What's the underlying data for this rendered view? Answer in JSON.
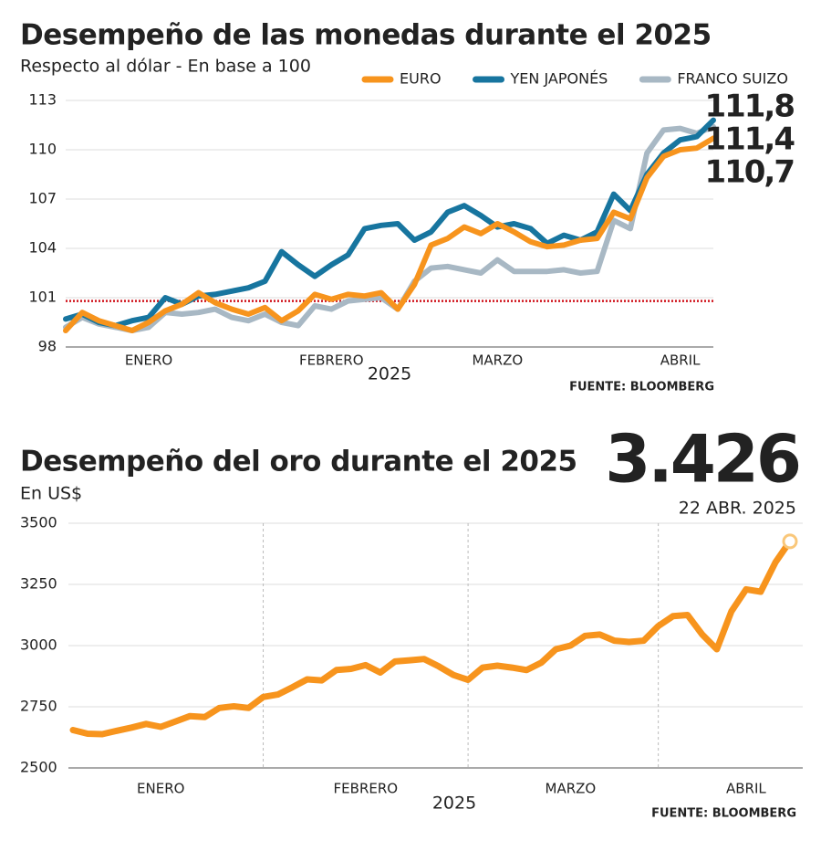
{
  "chart_data": [
    {
      "type": "line",
      "title": "Desempeño de las monedas durante el 2025",
      "subtitle": "Respecto al dólar - En base a 100",
      "x_label": "2025",
      "source": "FUENTE: BLOOMBERG",
      "categories": [
        null,
        null,
        null,
        null,
        null,
        "ENERO",
        null,
        null,
        null,
        null,
        null,
        null,
        null,
        null,
        null,
        null,
        "FEBRERO",
        null,
        null,
        null,
        null,
        null,
        null,
        null,
        null,
        null,
        "MARZO",
        null,
        null,
        null,
        null,
        null,
        null,
        null,
        null,
        null,
        null,
        "ABRIL",
        null,
        null
      ],
      "ylim": [
        98,
        113
      ],
      "yticks": [
        98,
        101,
        104,
        107,
        110,
        113
      ],
      "grid": true,
      "reference_line": {
        "value": 100.8,
        "color": "#d0121b"
      },
      "series": [
        {
          "name": "EURO",
          "color": "#f7941d",
          "values": [
            99.0,
            100.1,
            99.6,
            99.3,
            99.0,
            99.5,
            100.2,
            100.6,
            101.3,
            100.7,
            100.3,
            100.0,
            100.4,
            99.6,
            100.2,
            101.2,
            100.9,
            101.2,
            101.1,
            101.3,
            100.3,
            101.8,
            104.2,
            104.6,
            105.3,
            104.9,
            105.5,
            105.0,
            104.4,
            104.1,
            104.2,
            104.5,
            104.6,
            106.2,
            105.8,
            108.3,
            109.6,
            110.0,
            110.1,
            110.7
          ],
          "value_labels": [
            null,
            null,
            null,
            null,
            null,
            null,
            null,
            null,
            null,
            null,
            null,
            null,
            null,
            null,
            null,
            null,
            null,
            null,
            null,
            null,
            null,
            null,
            null,
            null,
            null,
            null,
            null,
            null,
            null,
            null,
            null,
            null,
            null,
            null,
            null,
            null,
            null,
            null,
            null,
            "110,7"
          ]
        },
        {
          "name": "YEN JAPONÉS",
          "color": "#17759f",
          "values": [
            99.7,
            100.0,
            99.5,
            99.3,
            99.6,
            99.8,
            101.0,
            100.6,
            101.1,
            101.2,
            101.4,
            101.6,
            102.0,
            103.8,
            103.0,
            102.3,
            103.0,
            103.6,
            105.2,
            105.4,
            105.5,
            104.5,
            105.0,
            106.2,
            106.6,
            106.0,
            105.3,
            105.5,
            105.2,
            104.3,
            104.8,
            104.5,
            105.0,
            107.3,
            106.3,
            108.5,
            109.8,
            110.6,
            110.8,
            111.8
          ],
          "value_labels": [
            null,
            null,
            null,
            null,
            null,
            null,
            null,
            null,
            null,
            null,
            null,
            null,
            null,
            null,
            null,
            null,
            null,
            null,
            null,
            null,
            null,
            null,
            null,
            null,
            null,
            null,
            null,
            null,
            null,
            null,
            null,
            null,
            null,
            null,
            null,
            null,
            null,
            null,
            null,
            "111,8"
          ]
        },
        {
          "name": "FRANCO SUIZO",
          "color": "#a8b8c4",
          "values": [
            99.2,
            99.8,
            99.4,
            99.2,
            99.0,
            99.2,
            100.1,
            100.0,
            100.1,
            100.3,
            99.8,
            99.6,
            100.0,
            99.5,
            99.3,
            100.5,
            100.3,
            100.8,
            100.9,
            101.0,
            100.3,
            102.0,
            102.8,
            102.9,
            102.7,
            102.5,
            103.3,
            102.6,
            102.6,
            102.6,
            102.7,
            102.5,
            102.6,
            105.7,
            105.2,
            109.8,
            111.2,
            111.3,
            111.0,
            111.4
          ],
          "value_labels": [
            null,
            null,
            null,
            null,
            null,
            null,
            null,
            null,
            null,
            null,
            null,
            null,
            null,
            null,
            null,
            null,
            null,
            null,
            null,
            null,
            null,
            null,
            null,
            null,
            null,
            null,
            null,
            null,
            null,
            null,
            null,
            null,
            null,
            null,
            null,
            null,
            null,
            null,
            null,
            "111,4"
          ]
        }
      ]
    },
    {
      "type": "line",
      "title": "Desempeño del oro durante el 2025",
      "subtitle": "En US$",
      "x_label": "2025",
      "source": "FUENTE: BLOOMBERG",
      "annotation": "22 ABR. 2025",
      "categories": [
        null,
        null,
        null,
        null,
        null,
        null,
        "ENERO",
        null,
        null,
        null,
        null,
        null,
        null,
        null,
        null,
        null,
        null,
        null,
        null,
        null,
        "FEBRERO",
        null,
        null,
        null,
        null,
        null,
        null,
        null,
        null,
        null,
        null,
        null,
        null,
        null,
        "MARZO",
        null,
        null,
        null,
        null,
        null,
        null,
        null,
        null,
        null,
        null,
        null,
        "ABRIL",
        null,
        null,
        null
      ],
      "ylim": [
        2500,
        3500
      ],
      "yticks": [
        2500,
        2750,
        3000,
        3250,
        3500
      ],
      "grid": true,
      "series": [
        {
          "color": "#f7941d",
          "values": [
            2655,
            2640,
            2638,
            2652,
            2665,
            2680,
            2668,
            2690,
            2712,
            2708,
            2745,
            2752,
            2745,
            2790,
            2800,
            2830,
            2862,
            2858,
            2900,
            2905,
            2920,
            2890,
            2935,
            2940,
            2945,
            2915,
            2880,
            2860,
            2910,
            2918,
            2910,
            2900,
            2930,
            2985,
            3000,
            3040,
            3045,
            3020,
            3015,
            3020,
            3080,
            3120,
            3125,
            3045,
            2985,
            3140,
            3230,
            3220,
            3340,
            3426
          ],
          "value_labels": [
            null,
            null,
            null,
            null,
            null,
            null,
            null,
            null,
            null,
            null,
            null,
            null,
            null,
            null,
            null,
            null,
            null,
            null,
            null,
            null,
            null,
            null,
            null,
            null,
            null,
            null,
            null,
            null,
            null,
            null,
            null,
            null,
            null,
            null,
            null,
            null,
            null,
            null,
            null,
            null,
            null,
            null,
            null,
            null,
            null,
            null,
            null,
            null,
            null,
            "3.426"
          ]
        }
      ]
    }
  ]
}
